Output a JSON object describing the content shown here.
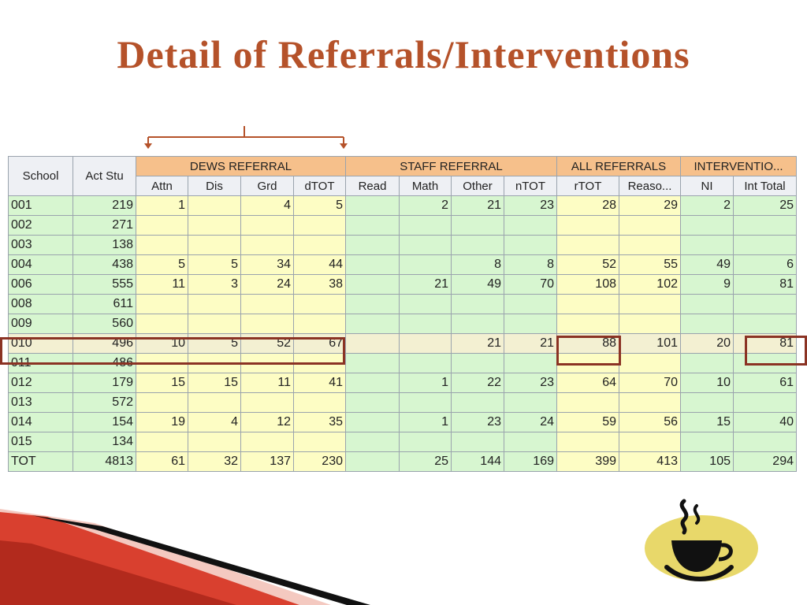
{
  "title": "Detail of Referrals/Interventions",
  "table": {
    "lead_headers": [
      "School",
      "Act Stu"
    ],
    "groups": [
      "DEWS REFERRAL",
      "STAFF REFERRAL",
      "ALL REFERRALS",
      "INTERVENTIO..."
    ],
    "subheaders": [
      "Attn",
      "Dis",
      "Grd",
      "dTOT",
      "Read",
      "Math",
      "Other",
      "nTOT",
      "rTOT",
      "Reaso...",
      "NI",
      "Int Total"
    ],
    "rows": [
      [
        "001",
        "219",
        "1",
        "",
        "4",
        "5",
        "",
        "2",
        "21",
        "23",
        "28",
        "29",
        "2",
        "25"
      ],
      [
        "002",
        "271",
        "",
        "",
        "",
        "",
        "",
        "",
        "",
        "",
        "",
        "",
        "",
        ""
      ],
      [
        "003",
        "138",
        "",
        "",
        "",
        "",
        "",
        "",
        "",
        "",
        "",
        "",
        "",
        ""
      ],
      [
        "004",
        "438",
        "5",
        "5",
        "34",
        "44",
        "",
        "",
        "8",
        "8",
        "52",
        "55",
        "49",
        "6"
      ],
      [
        "006",
        "555",
        "11",
        "3",
        "24",
        "38",
        "",
        "21",
        "49",
        "70",
        "108",
        "102",
        "9",
        "81"
      ],
      [
        "008",
        "611",
        "",
        "",
        "",
        "",
        "",
        "",
        "",
        "",
        "",
        "",
        "",
        ""
      ],
      [
        "009",
        "560",
        "",
        "",
        "",
        "",
        "",
        "",
        "",
        "",
        "",
        "",
        "",
        ""
      ],
      [
        "010",
        "496",
        "10",
        "5",
        "52",
        "67",
        "",
        "",
        "21",
        "21",
        "88",
        "101",
        "20",
        "81"
      ],
      [
        "011",
        "486",
        "",
        "",
        "",
        "",
        "",
        "",
        "",
        "",
        "",
        "",
        "",
        ""
      ],
      [
        "012",
        "179",
        "15",
        "15",
        "11",
        "41",
        "",
        "1",
        "22",
        "23",
        "64",
        "70",
        "10",
        "61"
      ],
      [
        "013",
        "572",
        "",
        "",
        "",
        "",
        "",
        "",
        "",
        "",
        "",
        "",
        "",
        ""
      ],
      [
        "014",
        "154",
        "19",
        "4",
        "12",
        "35",
        "",
        "1",
        "23",
        "24",
        "59",
        "56",
        "15",
        "40"
      ],
      [
        "015",
        "134",
        "",
        "",
        "",
        "",
        "",
        "",
        "",
        "",
        "",
        "",
        "",
        ""
      ],
      [
        "TOT",
        "4813",
        "61",
        "32",
        "137",
        "230",
        "",
        "25",
        "144",
        "169",
        "399",
        "413",
        "105",
        "294"
      ]
    ],
    "highlighted_row": 7
  },
  "colors": {
    "title": "#b5522a",
    "group_header": "#f6c08b",
    "yellow_cell": "#fdfdc4",
    "green_cell": "#d7f6d0",
    "highlight_box": "#8b3324"
  },
  "icons": {
    "coffee": "coffee-cup-icon",
    "bracket": "bracket-arrow-icon"
  }
}
